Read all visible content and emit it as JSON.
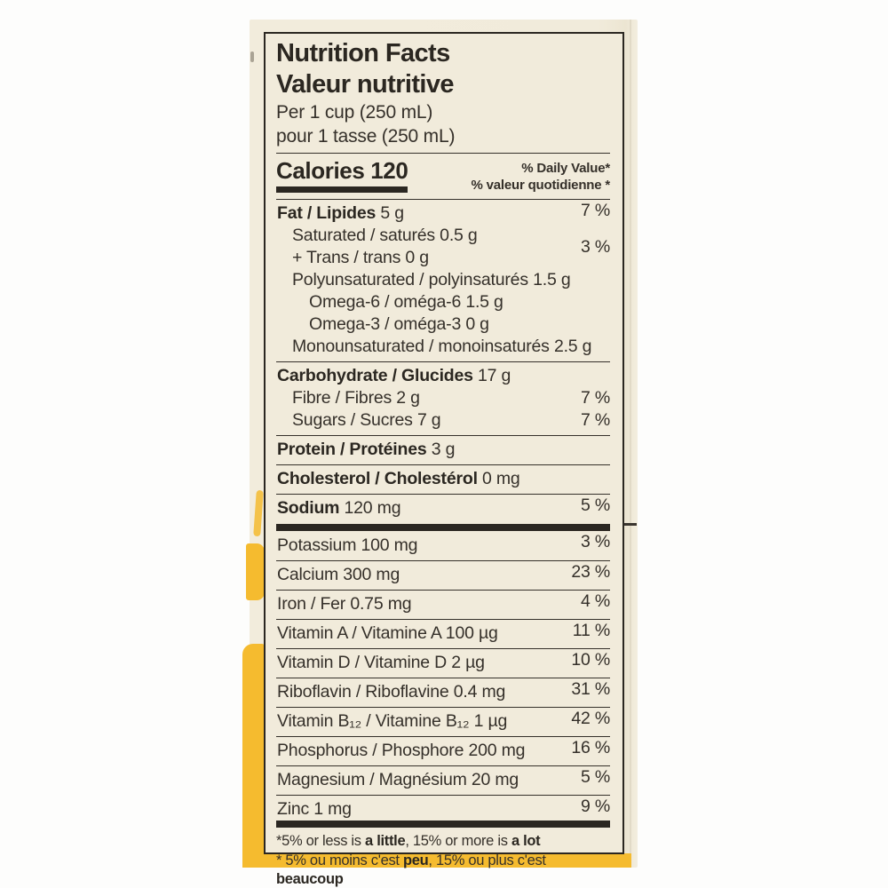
{
  "panel": {
    "title_en": "Nutrition Facts",
    "title_fr": "Valeur nutritive",
    "serving_en": "Per 1 cup (250 mL)",
    "serving_fr": "pour 1 tasse (250 mL)",
    "calories_label": "Calories",
    "calories_value": "120",
    "daily_value_en": "% Daily Value*",
    "daily_value_fr": "% valeur quotidienne *"
  },
  "table": {
    "rows": [
      {
        "id": "fat",
        "indent": 0,
        "bold": "Fat / Lipides",
        "text": "5 g",
        "pct": "7 %",
        "sep": "thin"
      },
      {
        "id": "saturated",
        "indent": 1,
        "text": "Saturated / saturés 0.5 g",
        "pct": "3 %",
        "pct_between": true
      },
      {
        "id": "trans",
        "indent": 1,
        "text": "+ Trans / trans 0 g"
      },
      {
        "id": "polyunsaturated",
        "indent": 1,
        "text": "Polyunsaturated / polyinsaturés 1.5 g"
      },
      {
        "id": "omega-6",
        "indent": 2,
        "text": "Omega-6 / oméga-6 1.5 g"
      },
      {
        "id": "omega-3",
        "indent": 2,
        "text": "Omega-3 / oméga-3 0 g"
      },
      {
        "id": "monounsaturated",
        "indent": 1,
        "text": "Monounsaturated / monoinsaturés 2.5 g"
      },
      {
        "id": "carbohydrate",
        "indent": 0,
        "bold": "Carbohydrate / Glucides",
        "text": "17 g",
        "sep": "thin"
      },
      {
        "id": "fibre",
        "indent": 1,
        "text": "Fibre / Fibres 2 g",
        "pct": "7 %"
      },
      {
        "id": "sugars",
        "indent": 1,
        "text": "Sugars / Sucres 7 g",
        "pct": "7 %"
      },
      {
        "id": "protein",
        "indent": 0,
        "bold": "Protein / Protéines",
        "text": "3 g",
        "sep": "thin"
      },
      {
        "id": "cholesterol",
        "indent": 0,
        "bold": "Cholesterol / Cholestérol",
        "text": "0 mg",
        "sep": "thin"
      },
      {
        "id": "sodium",
        "indent": 0,
        "bold": "Sodium",
        "text": "120 mg",
        "pct": "5 %",
        "sep": "thin"
      },
      {
        "id": "potassium",
        "indent": 0,
        "text": "Potassium 100 mg",
        "pct": "3 %",
        "sep": "thick"
      },
      {
        "id": "calcium",
        "indent": 0,
        "text": "Calcium 300 mg",
        "pct": "23 %",
        "sep": "thin"
      },
      {
        "id": "iron",
        "indent": 0,
        "text": "Iron / Fer 0.75 mg",
        "pct": "4 %",
        "sep": "thin"
      },
      {
        "id": "vitamin-a",
        "indent": 0,
        "text": "Vitamin A / Vitamine A 100 µg",
        "pct": "11 %",
        "sep": "thin"
      },
      {
        "id": "vitamin-d",
        "indent": 0,
        "text": "Vitamin D / Vitamine D 2 µg",
        "pct": "10 %",
        "sep": "thin"
      },
      {
        "id": "riboflavin",
        "indent": 0,
        "text": "Riboflavin / Riboflavine 0.4 mg",
        "pct": "31 %",
        "sep": "thin"
      },
      {
        "id": "vitamin-b12",
        "indent": 0,
        "text": "Vitamin B₁₂ / Vitamine B₁₂ 1 µg",
        "pct": "42 %",
        "sep": "thin"
      },
      {
        "id": "phosphorus",
        "indent": 0,
        "text": "Phosphorus / Phosphore 200 mg",
        "pct": "16 %",
        "sep": "thin"
      },
      {
        "id": "magnesium",
        "indent": 0,
        "text": "Magnesium / Magnésium 20 mg",
        "pct": "5 %",
        "sep": "thin"
      },
      {
        "id": "zinc",
        "indent": 0,
        "text": "Zinc 1 mg",
        "pct": "9 %",
        "sep": "thin"
      }
    ]
  },
  "footnotes": {
    "en": [
      {
        "t": "*5% or less is "
      },
      {
        "t": "a little",
        "b": true
      },
      {
        "t": ", 15% or more is "
      },
      {
        "t": "a lot",
        "b": true
      }
    ],
    "fr": [
      {
        "t": "* 5% ou moins c'est "
      },
      {
        "t": "peu",
        "b": true
      },
      {
        "t": ", 15% ou plus c'est "
      },
      {
        "t": "beaucoup",
        "b": true
      }
    ]
  },
  "colors": {
    "package_cream": "#f1ebdb",
    "accent_yellow": "#f5bb2f",
    "ink": "#35302a",
    "page_background": "#fdfdfc"
  }
}
